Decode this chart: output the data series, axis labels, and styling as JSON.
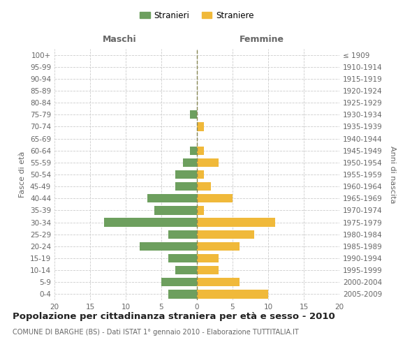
{
  "age_groups": [
    "0-4",
    "5-9",
    "10-14",
    "15-19",
    "20-24",
    "25-29",
    "30-34",
    "35-39",
    "40-44",
    "45-49",
    "50-54",
    "55-59",
    "60-64",
    "65-69",
    "70-74",
    "75-79",
    "80-84",
    "85-89",
    "90-94",
    "95-99",
    "100+"
  ],
  "birth_years": [
    "2005-2009",
    "2000-2004",
    "1995-1999",
    "1990-1994",
    "1985-1989",
    "1980-1984",
    "1975-1979",
    "1970-1974",
    "1965-1969",
    "1960-1964",
    "1955-1959",
    "1950-1954",
    "1945-1949",
    "1940-1944",
    "1935-1939",
    "1930-1934",
    "1925-1929",
    "1920-1924",
    "1915-1919",
    "1910-1914",
    "≤ 1909"
  ],
  "maschi": [
    4,
    5,
    3,
    4,
    8,
    4,
    13,
    6,
    7,
    3,
    3,
    2,
    1,
    0,
    0,
    1,
    0,
    0,
    0,
    0,
    0
  ],
  "femmine": [
    10,
    6,
    3,
    3,
    6,
    8,
    11,
    1,
    5,
    2,
    1,
    3,
    1,
    0,
    1,
    0,
    0,
    0,
    0,
    0,
    0
  ],
  "maschi_color": "#6d9f5e",
  "femmine_color": "#f0b93a",
  "grid_color": "#cccccc",
  "centerline_color": "#888855",
  "xlim": 20,
  "title": "Popolazione per cittadinanza straniera per età e sesso - 2010",
  "subtitle": "COMUNE DI BARGHE (BS) - Dati ISTAT 1° gennaio 2010 - Elaborazione TUTTITALIA.IT",
  "ylabel_left": "Fasce di età",
  "ylabel_right": "Anni di nascita",
  "xlabel_maschi": "Maschi",
  "xlabel_femmine": "Femmine",
  "legend_maschi": "Stranieri",
  "legend_femmine": "Straniere",
  "bg_color": "#ffffff",
  "bar_height": 0.72,
  "tick_fontsize": 7.5,
  "title_fontsize": 9.5,
  "subtitle_fontsize": 7.0
}
